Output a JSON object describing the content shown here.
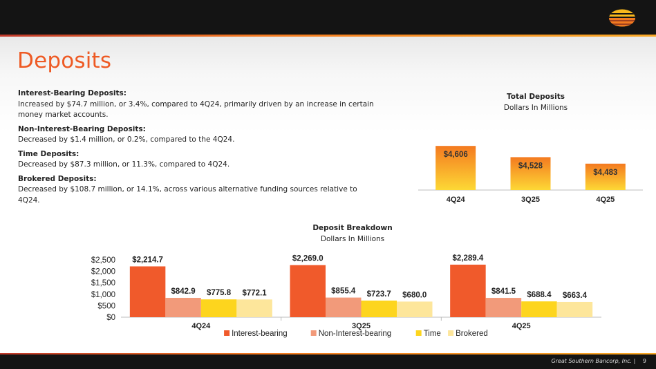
{
  "slide": {
    "title": "Deposits",
    "footer_company": "Great Southern Bancorp, Inc.",
    "footer_sep": "|",
    "page_number": "9"
  },
  "bullets": [
    {
      "heading": "Interest-Bearing Deposits:",
      "text": "Increased by $74.7 million, or 3.4%, compared to 4Q24, primarily driven by an increase in certain money market accounts."
    },
    {
      "heading": "Non-Interest-Bearing Deposits:",
      "text": "Decreased by $1.4 million, or 0.2%, compared to the 4Q24."
    },
    {
      "heading": "Time Deposits:",
      "text": "Decreased by $87.3 million, or 11.3%, compared to 4Q24."
    },
    {
      "heading": "Brokered Deposits:",
      "text": "Decreased by $108.7 million, or 14.1%, across various alternative funding sources  relative to 4Q24."
    }
  ],
  "colors": {
    "orange_accent": "#ee5a24",
    "interest_bearing": "#f05a2b",
    "non_interest_bearing": "#f29a7a",
    "time": "#fdd51e",
    "brokered": "#fde69b",
    "total_top": "#f47a20",
    "total_bottom": "#fdd835"
  },
  "chart_data": [
    {
      "type": "bar",
      "title": "Total Deposits",
      "subtitle": "Dollars In Millions",
      "categories": [
        "4Q24",
        "3Q25",
        "4Q25"
      ],
      "values": [
        4606,
        4528,
        4483
      ],
      "labels": [
        "$4,606",
        "$4,528",
        "$4,483"
      ],
      "ylim": [
        4300,
        4650
      ],
      "axis_visible": false
    },
    {
      "type": "bar",
      "title": "Deposit Breakdown",
      "subtitle": "Dollars In Millions",
      "categories": [
        "4Q24",
        "3Q25",
        "4Q25"
      ],
      "series": [
        {
          "name": "Interest-bearing",
          "values": [
            2214.7,
            2269.0,
            2289.4
          ],
          "labels": [
            "$2,214.7",
            "$2,269.0",
            "$2,289.4"
          ]
        },
        {
          "name": "Non-Interest-bearing",
          "values": [
            842.9,
            855.4,
            841.5
          ],
          "labels": [
            "$842.9",
            "$855.4",
            "$841.5"
          ]
        },
        {
          "name": "Time",
          "values": [
            775.8,
            723.7,
            688.4
          ],
          "labels": [
            "$775.8",
            "$723.7",
            "$688.4"
          ]
        },
        {
          "name": "Brokered",
          "values": [
            772.1,
            680.0,
            663.4
          ],
          "labels": [
            "$772.1",
            "$680.0",
            "$663.4"
          ]
        }
      ],
      "ylim": [
        0,
        2500
      ],
      "yticks": [
        0,
        500,
        1000,
        1500,
        2000,
        2500
      ],
      "ytick_labels": [
        "$0",
        "$500",
        "$1,000",
        "$1,500",
        "$2,000",
        "$2,500"
      ],
      "legend": "bottom"
    }
  ]
}
